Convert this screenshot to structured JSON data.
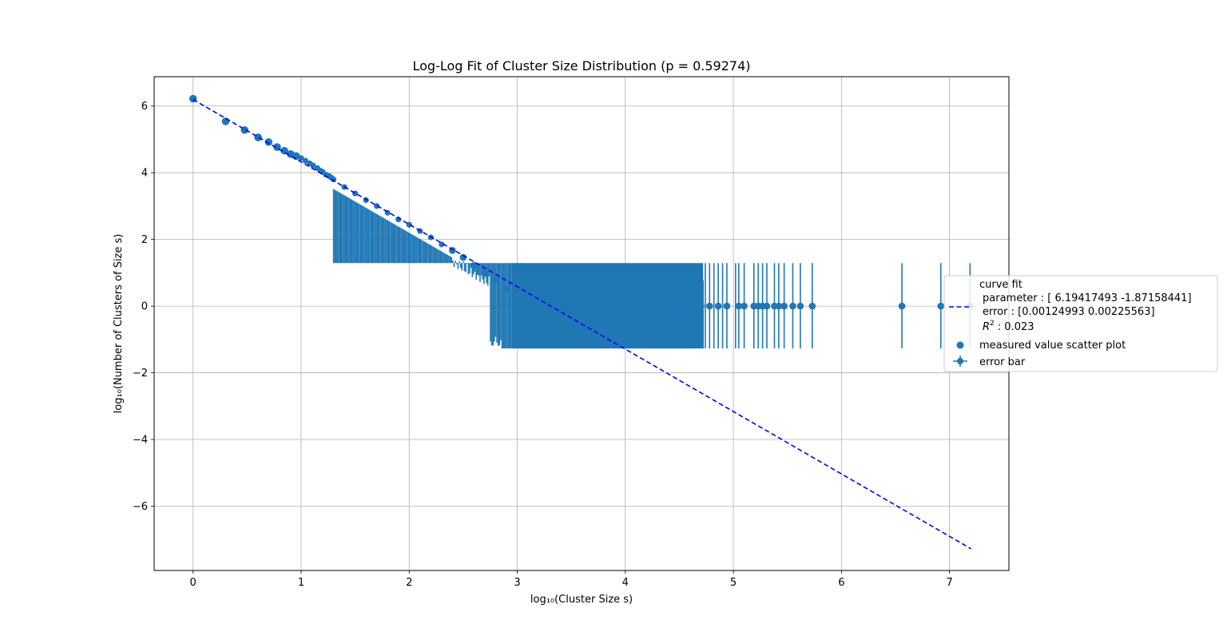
{
  "chart_data": {
    "type": "scatter",
    "title": "Log-Log Fit of Cluster Size Distribution (p = 0.59274)",
    "xlabel": "log₁₀(Cluster Size s)",
    "ylabel": "log₁₀(Number of Clusters of Size s)",
    "xlim": [
      -0.36,
      7.55
    ],
    "ylim": [
      -7.93,
      6.88
    ],
    "xticks": [
      0,
      1,
      2,
      3,
      4,
      5,
      6,
      7
    ],
    "yticks": [
      -6,
      -4,
      -2,
      0,
      2,
      4,
      6
    ],
    "xtick_labels": [
      "0",
      "1",
      "2",
      "3",
      "4",
      "5",
      "6",
      "7"
    ],
    "ytick_labels": [
      "−6",
      "−4",
      "−2",
      "0",
      "2",
      "4",
      "6"
    ],
    "grid": true,
    "legend_position": "right, outside axes",
    "colors": {
      "points": "#1f77b4",
      "fit": "#0000ff"
    },
    "fit_line": {
      "name": "curve fit",
      "intercept": 6.19417493,
      "slope": -1.87158441,
      "x_range": [
        0,
        7.2
      ],
      "style": "dashed"
    },
    "scatter": {
      "name": "measured value scatter plot",
      "x": [
        0,
        0.301,
        0.477,
        0.602,
        0.699,
        0.778,
        0.845,
        0.903,
        0.954,
        1.0,
        1.04,
        1.08,
        1.11,
        1.15,
        1.18,
        1.2,
        1.23,
        1.26,
        1.28,
        1.3,
        1.4,
        1.5,
        1.6,
        1.7,
        1.8,
        1.9,
        2.0,
        2.1,
        2.2,
        2.3,
        2.4,
        2.5,
        2.6,
        2.7,
        2.8,
        2.9,
        3.0,
        3.1,
        3.2,
        3.3,
        3.4,
        3.5,
        3.6,
        3.7,
        3.8,
        3.9,
        4.0,
        4.1,
        4.2,
        4.3,
        4.4,
        4.5,
        4.6,
        4.7,
        4.78,
        4.86,
        4.94,
        5.05,
        5.1,
        5.19,
        5.23,
        5.27,
        5.31,
        5.38,
        5.42,
        5.47,
        5.55,
        5.62,
        5.73,
        6.56,
        6.92,
        7.19
      ],
      "y": [
        6.22,
        5.54,
        5.28,
        5.06,
        4.92,
        4.77,
        4.66,
        4.56,
        4.5,
        4.44,
        4.36,
        4.28,
        4.22,
        4.14,
        4.06,
        4.02,
        3.94,
        3.9,
        3.85,
        3.8,
        3.57,
        3.38,
        3.18,
        3.0,
        2.8,
        2.6,
        2.44,
        2.25,
        2.06,
        1.85,
        1.67,
        1.46,
        1.22,
        0.98,
        0.78,
        0.5,
        0.35,
        0.18,
        0.08,
        0.04,
        0.0,
        0.0,
        0.0,
        0.0,
        0.0,
        0.0,
        0.0,
        0.0,
        0.0,
        0.0,
        0.0,
        0.0,
        0.0,
        0.0,
        0.0,
        0.0,
        0.0,
        0.0,
        0.0,
        0.0,
        0.0,
        0.0,
        0.0,
        0.0,
        0.0,
        0.0,
        0.0,
        0.0,
        0.0,
        0.0,
        0.0,
        0.0
      ]
    },
    "error_bars": {
      "name": "error bar",
      "dense_region": {
        "x_range": [
          1.3,
          4.72
        ],
        "bottom": -1.27,
        "top_cap": 1.29
      },
      "sparse": [
        {
          "x": 4.74,
          "lo": -1.27,
          "hi": 1.29
        },
        {
          "x": 4.78,
          "lo": -1.27,
          "hi": 1.29
        },
        {
          "x": 4.82,
          "lo": -1.27,
          "hi": 1.29
        },
        {
          "x": 4.86,
          "lo": -1.27,
          "hi": 1.29
        },
        {
          "x": 4.9,
          "lo": -1.27,
          "hi": 1.29
        },
        {
          "x": 4.94,
          "lo": -1.27,
          "hi": 1.29
        },
        {
          "x": 5.02,
          "lo": -1.27,
          "hi": 1.29
        },
        {
          "x": 5.05,
          "lo": -1.27,
          "hi": 1.29
        },
        {
          "x": 5.1,
          "lo": -1.27,
          "hi": 1.29
        },
        {
          "x": 5.19,
          "lo": -1.27,
          "hi": 1.29
        },
        {
          "x": 5.23,
          "lo": -1.27,
          "hi": 1.29
        },
        {
          "x": 5.27,
          "lo": -1.27,
          "hi": 1.29
        },
        {
          "x": 5.31,
          "lo": -1.27,
          "hi": 1.29
        },
        {
          "x": 5.38,
          "lo": -1.27,
          "hi": 1.29
        },
        {
          "x": 5.42,
          "lo": -1.27,
          "hi": 1.29
        },
        {
          "x": 5.47,
          "lo": -1.27,
          "hi": 1.29
        },
        {
          "x": 5.55,
          "lo": -1.27,
          "hi": 1.29
        },
        {
          "x": 5.62,
          "lo": -1.27,
          "hi": 1.29
        },
        {
          "x": 5.73,
          "lo": -1.27,
          "hi": 1.29
        },
        {
          "x": 6.56,
          "lo": -1.27,
          "hi": 1.29
        },
        {
          "x": 6.92,
          "lo": -1.27,
          "hi": 1.29
        },
        {
          "x": 7.19,
          "lo": -1.27,
          "hi": 1.29
        }
      ]
    },
    "legend": {
      "fit_title": "curve fit",
      "fit_parameter": "parameter : [ 6.19417493 -1.87158441]",
      "fit_error": "error : [0.00124993 0.00225563]",
      "fit_r2_value": ": 0.023",
      "scatter_label": "measured value scatter plot",
      "errorbar_label": "error bar"
    }
  }
}
